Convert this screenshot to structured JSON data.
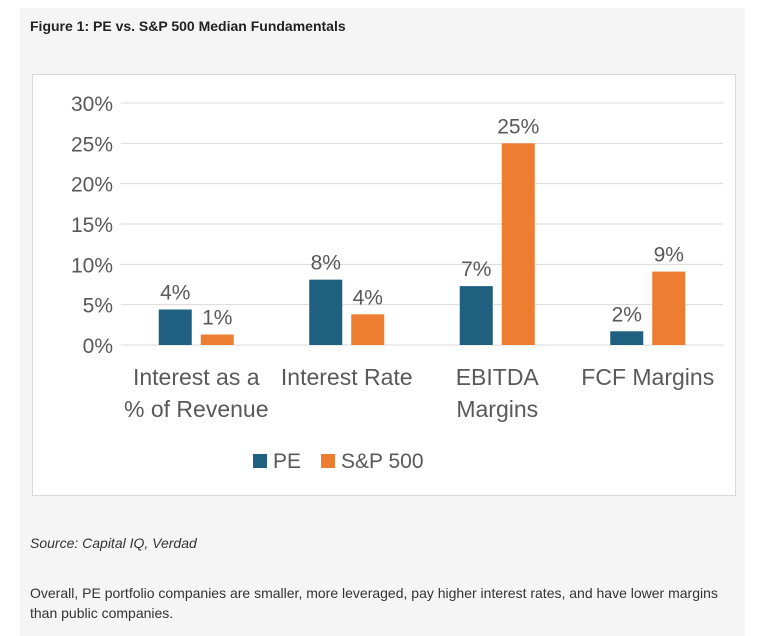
{
  "figure_title": "Figure 1: PE vs. S&P 500 Median Fundamentals",
  "source": "Source: Capital IQ, Verdad",
  "summary": "Overall, PE portfolio companies are smaller, more leveraged, pay higher interest rates, and have lower margins than public companies.",
  "colors": {
    "pe": "#1f5f7f",
    "sp500": "#ed7d31",
    "grid": "#d9d9d9",
    "text": "#595959"
  },
  "chart_data": {
    "type": "bar",
    "title": "",
    "xlabel": "",
    "ylabel": "",
    "ylim": [
      0,
      0.3
    ],
    "y_ticks": [
      {
        "value": 0.0,
        "label": "0%"
      },
      {
        "value": 0.05,
        "label": "5%"
      },
      {
        "value": 0.1,
        "label": "10%"
      },
      {
        "value": 0.15,
        "label": "15%"
      },
      {
        "value": 0.2,
        "label": "20%"
      },
      {
        "value": 0.25,
        "label": "25%"
      },
      {
        "value": 0.3,
        "label": "30%"
      }
    ],
    "categories": [
      [
        "Interest as a",
        "% of Revenue"
      ],
      [
        "Interest Rate"
      ],
      [
        "EBITDA",
        "Margins"
      ],
      [
        "FCF Margins"
      ]
    ],
    "series": [
      {
        "name": "PE",
        "color": "#1f5f7f",
        "values": [
          0.044,
          0.081,
          0.073,
          0.017
        ],
        "labels": [
          "4%",
          "8%",
          "7%",
          "2%"
        ]
      },
      {
        "name": "S&P 500",
        "color": "#ed7d31",
        "values": [
          0.013,
          0.038,
          0.25,
          0.091
        ],
        "labels": [
          "1%",
          "4%",
          "25%",
          "9%"
        ]
      }
    ],
    "grid": true,
    "legend": "bottom"
  }
}
